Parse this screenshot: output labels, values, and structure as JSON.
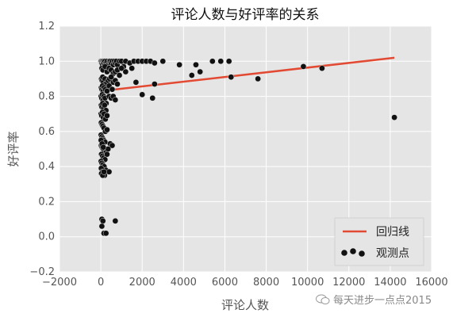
{
  "chart_data": {
    "type": "scatter",
    "title": "评论人数与好评率的关系",
    "xlabel": "评论人数",
    "ylabel": "好评率",
    "xlim": [
      -2000,
      16000
    ],
    "ylim": [
      -0.2,
      1.2
    ],
    "xticks": [
      -2000,
      0,
      2000,
      4000,
      6000,
      8000,
      10000,
      12000,
      14000,
      16000
    ],
    "yticks": [
      -0.2,
      0.0,
      0.2,
      0.4,
      0.6,
      0.8,
      1.0,
      1.2
    ],
    "xtick_labels": [
      "−2000",
      "0",
      "2000",
      "4000",
      "6000",
      "8000",
      "10000",
      "12000",
      "14000",
      "16000"
    ],
    "ytick_labels": [
      "−0.2",
      "0.0",
      "0.2",
      "0.4",
      "0.6",
      "0.8",
      "1.0",
      "1.2"
    ],
    "grid": true,
    "legend_position": "bottom-right",
    "colors": {
      "background": "#e5e5e5",
      "line": "#e24a33",
      "points": "#111111"
    },
    "series": [
      {
        "name": "回归线",
        "kind": "line",
        "x": [
          0,
          14200
        ],
        "y": [
          0.83,
          1.02
        ]
      },
      {
        "name": "观测点",
        "kind": "scatter",
        "x": [
          0,
          20,
          40,
          60,
          80,
          100,
          120,
          150,
          180,
          200,
          250,
          300,
          350,
          400,
          450,
          500,
          550,
          600,
          650,
          700,
          750,
          800,
          900,
          1000,
          1100,
          1200,
          1400,
          1600,
          1800,
          2000,
          2200,
          2400,
          2600,
          3000,
          3800,
          4600,
          5400,
          5800,
          6200,
          50,
          100,
          200,
          300,
          400,
          500,
          600,
          700,
          800,
          900,
          1000,
          1200,
          1500,
          1700,
          2600,
          4400,
          4800,
          30,
          60,
          90,
          120,
          200,
          250,
          350,
          420,
          500,
          600,
          700,
          800,
          20,
          50,
          80,
          110,
          160,
          220,
          300,
          400,
          550,
          2000,
          2500,
          10,
          40,
          70,
          100,
          140,
          200,
          260,
          20,
          50,
          90,
          130,
          180,
          250,
          400,
          500,
          600,
          700,
          10,
          40,
          80,
          120,
          160,
          220,
          300,
          20,
          60,
          100,
          150,
          220,
          300,
          450,
          550,
          10,
          50,
          90,
          140,
          200,
          20,
          60,
          110,
          170,
          250,
          350,
          30,
          80,
          130,
          200,
          300,
          10,
          50,
          100,
          160,
          240,
          400,
          20,
          70,
          120,
          180,
          30,
          90,
          150,
          10,
          60,
          120,
          50,
          100,
          700,
          50,
          150,
          250,
          6300,
          7600,
          9800,
          10700,
          14200
        ],
        "y": [
          1.0,
          1.0,
          0.99,
          1.0,
          0.98,
          1.0,
          0.99,
          1.0,
          0.98,
          1.0,
          0.99,
          1.0,
          0.98,
          1.0,
          1.0,
          0.99,
          1.0,
          0.98,
          1.0,
          0.99,
          1.0,
          0.98,
          1.0,
          1.0,
          0.97,
          1.0,
          0.99,
          1.0,
          1.0,
          1.0,
          1.0,
          1.0,
          0.99,
          1.0,
          0.98,
          0.98,
          1.0,
          1.0,
          1.0,
          0.96,
          0.95,
          0.97,
          0.94,
          0.96,
          0.95,
          0.93,
          0.94,
          0.95,
          0.92,
          0.96,
          0.94,
          0.96,
          0.88,
          0.87,
          0.92,
          0.94,
          0.9,
          0.89,
          0.91,
          0.88,
          0.9,
          0.87,
          0.89,
          0.9,
          0.91,
          0.88,
          0.89,
          0.87,
          0.85,
          0.84,
          0.86,
          0.83,
          0.85,
          0.84,
          0.83,
          0.86,
          0.84,
          0.81,
          0.79,
          0.8,
          0.79,
          0.81,
          0.78,
          0.8,
          0.79,
          0.76,
          0.75,
          0.74,
          0.76,
          0.73,
          0.75,
          0.72,
          0.8,
          0.79,
          0.8,
          0.78,
          0.7,
          0.69,
          0.71,
          0.68,
          0.7,
          0.67,
          0.69,
          0.65,
          0.64,
          0.63,
          0.62,
          0.6,
          0.61,
          0.53,
          0.52,
          0.58,
          0.57,
          0.56,
          0.55,
          0.54,
          0.52,
          0.51,
          0.5,
          0.49,
          0.48,
          0.5,
          0.47,
          0.46,
          0.45,
          0.44,
          0.47,
          0.43,
          0.42,
          0.41,
          0.4,
          0.38,
          0.37,
          0.39,
          0.37,
          0.36,
          0.35,
          0.36,
          0.35,
          0.37,
          0.55,
          0.53,
          0.51,
          0.1,
          0.09,
          0.09,
          0.06,
          0.02,
          0.02,
          0.91,
          0.9,
          0.97,
          0.96,
          0.68
        ]
      }
    ]
  },
  "watermark": "每天进步一点点2015"
}
